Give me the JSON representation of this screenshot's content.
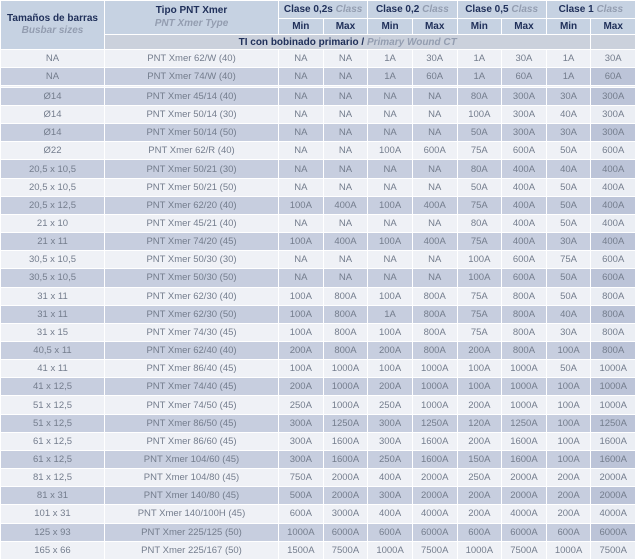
{
  "table": {
    "header": {
      "busbar": {
        "title": "Tamaños de barras",
        "subtitle": "Busbar sizes"
      },
      "type": {
        "title": "Tipo PNT Xmer",
        "subtitle": "PNT Xmer Type"
      },
      "groups": [
        {
          "title": "Clase 0,2s",
          "subtitle": "Class"
        },
        {
          "title": "Clase 0,2",
          "subtitle": "Class"
        },
        {
          "title": "Clase 0,5",
          "subtitle": "Class"
        },
        {
          "title": "Clase 1",
          "subtitle": "Class"
        }
      ],
      "min_label": "Min",
      "max_label": "Max",
      "section": {
        "title": "TI con bobinado primario",
        "separator": " / ",
        "subtitle": "Primary Wound CT"
      }
    },
    "rows": [
      {
        "busbar": "NA",
        "type": "PNT Xmer 62/W (40)",
        "values": [
          "NA",
          "NA",
          "1A",
          "30A",
          "1A",
          "30A",
          "1A",
          "30A"
        ]
      },
      {
        "busbar": "NA",
        "type": "PNT Xmer 74/W (40)",
        "values": [
          "NA",
          "NA",
          "1A",
          "60A",
          "1A",
          "60A",
          "1A",
          "60A"
        ]
      },
      {
        "busbar": "",
        "type": "",
        "values": [
          "",
          "",
          "",
          "",
          "",
          "",
          "",
          ""
        ]
      },
      {
        "busbar": "Ø14",
        "type": "PNT Xmer 45/14 (40)",
        "values": [
          "NA",
          "NA",
          "NA",
          "NA",
          "80A",
          "300A",
          "30A",
          "300A"
        ]
      },
      {
        "busbar": "Ø14",
        "type": "PNT Xmer 50/14 (30)",
        "values": [
          "NA",
          "NA",
          "NA",
          "NA",
          "100A",
          "300A",
          "40A",
          "300A"
        ]
      },
      {
        "busbar": "Ø14",
        "type": "PNT Xmer 50/14 (50)",
        "values": [
          "NA",
          "NA",
          "NA",
          "NA",
          "50A",
          "300A",
          "30A",
          "300A"
        ]
      },
      {
        "busbar": "Ø22",
        "type": "PNT Xmer 62/R (40)",
        "values": [
          "NA",
          "NA",
          "100A",
          "600A",
          "75A",
          "600A",
          "50A",
          "600A"
        ]
      },
      {
        "busbar": "20,5 x 10,5",
        "type": "PNT Xmer 50/21 (30)",
        "values": [
          "NA",
          "NA",
          "NA",
          "NA",
          "80A",
          "400A",
          "40A",
          "400A"
        ]
      },
      {
        "busbar": "20,5 x 10,5",
        "type": "PNT Xmer 50/21 (50)",
        "values": [
          "NA",
          "NA",
          "NA",
          "NA",
          "50A",
          "400A",
          "50A",
          "400A"
        ]
      },
      {
        "busbar": "20,5 x 12,5",
        "type": "PNT Xmer 62/20 (40)",
        "values": [
          "100A",
          "400A",
          "100A",
          "400A",
          "75A",
          "400A",
          "50A",
          "400A"
        ]
      },
      {
        "busbar": "21 x 10",
        "type": "PNT Xmer 45/21 (40)",
        "values": [
          "NA",
          "NA",
          "NA",
          "NA",
          "80A",
          "400A",
          "50A",
          "400A"
        ]
      },
      {
        "busbar": "21 x 11",
        "type": "PNT Xmer 74/20 (45)",
        "values": [
          "100A",
          "400A",
          "100A",
          "400A",
          "75A",
          "400A",
          "30A",
          "400A"
        ]
      },
      {
        "busbar": "30,5 x 10,5",
        "type": "PNT Xmer 50/30 (30)",
        "values": [
          "NA",
          "NA",
          "NA",
          "NA",
          "100A",
          "600A",
          "75A",
          "600A"
        ]
      },
      {
        "busbar": "30,5 x 10,5",
        "type": "PNT Xmer 50/30 (50)",
        "values": [
          "NA",
          "NA",
          "NA",
          "NA",
          "100A",
          "600A",
          "50A",
          "600A"
        ]
      },
      {
        "busbar": "31 x 11",
        "type": "PNT Xmer 62/30 (40)",
        "values": [
          "100A",
          "800A",
          "100A",
          "800A",
          "75A",
          "800A",
          "50A",
          "800A"
        ]
      },
      {
        "busbar": "31 x 11",
        "type": "PNT Xmer 62/30 (50)",
        "values": [
          "100A",
          "800A",
          "1A",
          "800A",
          "75A",
          "800A",
          "40A",
          "800A"
        ]
      },
      {
        "busbar": "31 x 15",
        "type": "PNT Xmer 74/30 (45)",
        "values": [
          "100A",
          "800A",
          "100A",
          "800A",
          "75A",
          "800A",
          "30A",
          "800A"
        ]
      },
      {
        "busbar": "40,5 x 11",
        "type": "PNT Xmer 62/40 (40)",
        "values": [
          "200A",
          "800A",
          "200A",
          "800A",
          "200A",
          "800A",
          "100A",
          "800A"
        ]
      },
      {
        "busbar": "41 x 11",
        "type": "PNT Xmer 86/40 (45)",
        "values": [
          "100A",
          "1000A",
          "100A",
          "1000A",
          "100A",
          "1000A",
          "50A",
          "1000A"
        ]
      },
      {
        "busbar": "41 x 12,5",
        "type": "PNT Xmer 74/40 (45)",
        "values": [
          "200A",
          "1000A",
          "200A",
          "1000A",
          "100A",
          "1000A",
          "100A",
          "1000A"
        ]
      },
      {
        "busbar": "51 x 12,5",
        "type": "PNT Xmer 74/50 (45)",
        "values": [
          "250A",
          "1000A",
          "250A",
          "1000A",
          "200A",
          "1000A",
          "100A",
          "1000A"
        ]
      },
      {
        "busbar": "51 x 12,5",
        "type": "PNT Xmer 86/50 (45)",
        "values": [
          "300A",
          "1250A",
          "300A",
          "1250A",
          "120A",
          "1250A",
          "100A",
          "1250A"
        ]
      },
      {
        "busbar": "61 x 12,5",
        "type": "PNT Xmer 86/60 (45)",
        "values": [
          "300A",
          "1600A",
          "300A",
          "1600A",
          "200A",
          "1600A",
          "100A",
          "1600A"
        ]
      },
      {
        "busbar": "61 x 12,5",
        "type": "PNT Xmer 104/60 (45)",
        "values": [
          "300A",
          "1600A",
          "250A",
          "1600A",
          "150A",
          "1600A",
          "100A",
          "1600A"
        ]
      },
      {
        "busbar": "81 x 12,5",
        "type": "PNT Xmer 104/80 (45)",
        "values": [
          "750A",
          "2000A",
          "400A",
          "2000A",
          "250A",
          "2000A",
          "200A",
          "2000A"
        ]
      },
      {
        "busbar": "81 x 31",
        "type": "PNT Xmer 140/80 (45)",
        "values": [
          "500A",
          "2000A",
          "300A",
          "2000A",
          "200A",
          "2000A",
          "200A",
          "2000A"
        ]
      },
      {
        "busbar": "101 x 31",
        "type": "PNT Xmer 140/100H (45)",
        "values": [
          "600A",
          "3000A",
          "400A",
          "4000A",
          "200A",
          "4000A",
          "200A",
          "4000A"
        ]
      },
      {
        "busbar": "125 x 93",
        "type": "PNT Xmer 225/125 (50)",
        "values": [
          "1000A",
          "6000A",
          "600A",
          "6000A",
          "600A",
          "6000A",
          "600A",
          "6000A"
        ]
      },
      {
        "busbar": "165 x 66",
        "type": "PNT Xmer 225/167 (50)",
        "values": [
          "1500A",
          "7500A",
          "1000A",
          "7500A",
          "1000A",
          "7500A",
          "1000A",
          "7500A"
        ]
      }
    ],
    "colors": {
      "header_bg": "#c6d2e2",
      "section_bg": "#cbd1dc",
      "row_light": "#eff1f6",
      "row_dark": "#c7cedf",
      "heading_text": "#20305a",
      "heading_italic_text": "#939db0",
      "body_text": "#747d8d",
      "grid": "#ffffff"
    }
  }
}
